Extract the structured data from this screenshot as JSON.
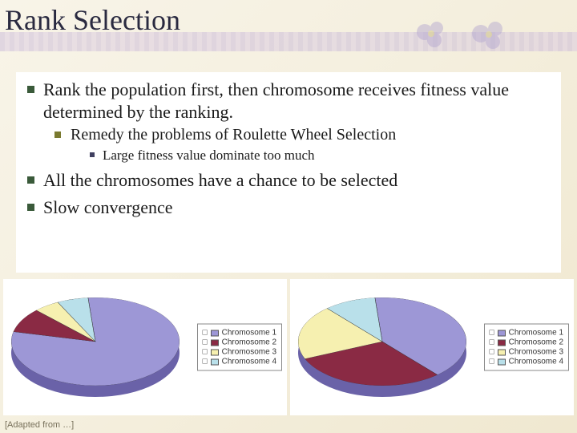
{
  "title": "Rank Selection",
  "bullets": {
    "b1": "Rank the population first, then chromosome receives fitness value determined by the ranking.",
    "b1_1": "Remedy the problems of Roulette Wheel Selection",
    "b1_1_1": "Large fitness value dominate too much",
    "b2": "All the chromosomes have a chance to be selected",
    "b3": "Slow convergence"
  },
  "footer": "[Adapted from …]",
  "legend_labels": [
    "Chromosome 1",
    "Chromosome 2",
    "Chromosome 3",
    "Chromosome 4"
  ],
  "charts": {
    "left": {
      "type": "pie-3d",
      "slices": [
        {
          "label": "Chromosome 1",
          "value": 80,
          "color": "#9d97d6"
        },
        {
          "label": "Chromosome 2",
          "value": 9,
          "color": "#8a2a44"
        },
        {
          "label": "Chromosome 3",
          "value": 5,
          "color": "#f6f0b0"
        },
        {
          "label": "Chromosome 4",
          "value": 6,
          "color": "#b9e0ea"
        }
      ],
      "start_angle_deg": -95,
      "side_color": "#6a62a8",
      "background_color": "#ffffff"
    },
    "right": {
      "type": "pie-3d",
      "slices": [
        {
          "label": "Chromosome 1",
          "value": 40,
          "color": "#9d97d6"
        },
        {
          "label": "Chromosome 2",
          "value": 30,
          "color": "#8a2a44"
        },
        {
          "label": "Chromosome 3",
          "value": 20,
          "color": "#f6f0b0"
        },
        {
          "label": "Chromosome 4",
          "value": 10,
          "color": "#b9e0ea"
        }
      ],
      "start_angle_deg": -95,
      "side_color": "#6a62a8",
      "background_color": "#ffffff"
    }
  },
  "styling": {
    "title_fontsize_pt": 27,
    "body_fontsize_pt": 17,
    "legend_fontsize_pt": 8,
    "slide_bg_gradient": [
      "#f8f4e8",
      "#f0e8d0"
    ],
    "content_bg": "#ffffff",
    "bullet_colors": {
      "lvl1": "#3a5a3a",
      "lvl2": "#7a7a30",
      "lvl3": "#404060"
    }
  }
}
